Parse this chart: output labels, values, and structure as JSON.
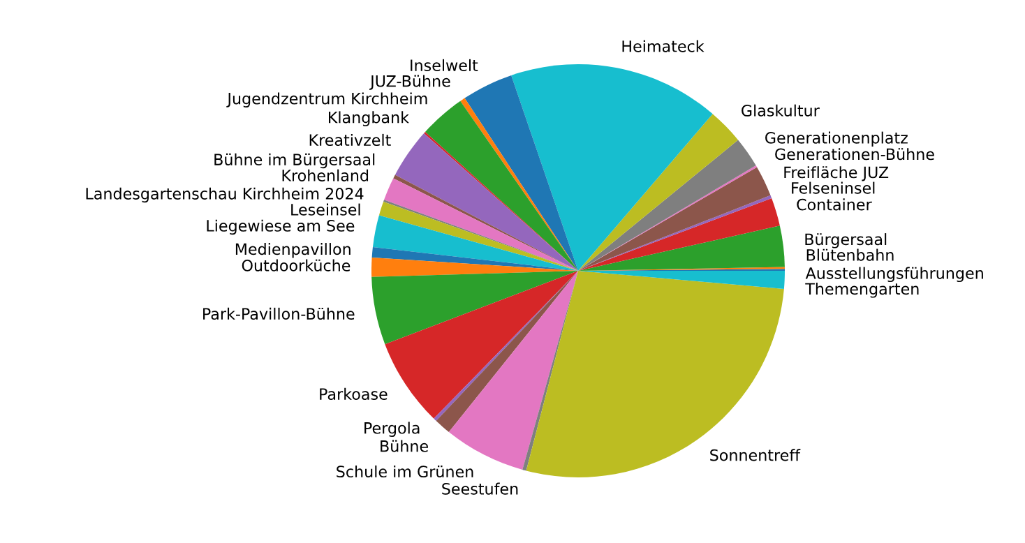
{
  "chart_data": {
    "type": "pie",
    "categories": [
      "Ausstellungsführungen",
      "Blütenbahn",
      "Bürgersaal",
      "Container",
      "Felseninsel",
      "Freifläche JUZ",
      "Generationen-Bühne",
      "Generationenplatz",
      "Glaskultur",
      "Heimateck",
      "Inselwelt",
      "JUZ-Bühne",
      "Jugendzentrum Kirchheim",
      "Klangbank",
      "Kreativzelt",
      "Bühne im Bürgersaal",
      "Krohenland",
      "Landesgartenschau Kirchheim 2024",
      "Leseinsel",
      "Liegewiese am See",
      "Medienpavillon",
      "Outdoorküche",
      "Park-Pavillon-Bühne",
      "Parkoase",
      "Pergola",
      "Bühne",
      "Schule im Grünen",
      "Seestufen",
      "Sonnentreff",
      "Themengarten"
    ],
    "values": [
      0.15,
      0.15,
      3.2,
      2.2,
      0.25,
      2.4,
      0.15,
      2.4,
      2.8,
      16.5,
      4.0,
      0.4,
      3.6,
      0.15,
      3.9,
      0.3,
      1.8,
      0.15,
      1.1,
      2.5,
      0.8,
      1.5,
      5.3,
      6.9,
      0.25,
      1.3,
      6.4,
      0.3,
      27.6,
      1.4
    ],
    "colors": [
      "#1f77b4",
      "#ff7f0e",
      "#2ca02c",
      "#d62728",
      "#9467bd",
      "#8c564b",
      "#e377c2",
      "#7f7f7f",
      "#bcbd22",
      "#17becf",
      "#1f77b4",
      "#ff7f0e",
      "#2ca02c",
      "#d62728",
      "#9467bd",
      "#8c564b",
      "#e377c2",
      "#7f7f7f",
      "#bcbd22",
      "#17becf",
      "#1f77b4",
      "#ff7f0e",
      "#2ca02c",
      "#d62728",
      "#9467bd",
      "#8c564b",
      "#e377c2",
      "#7f7f7f",
      "#bcbd22",
      "#17becf"
    ]
  }
}
